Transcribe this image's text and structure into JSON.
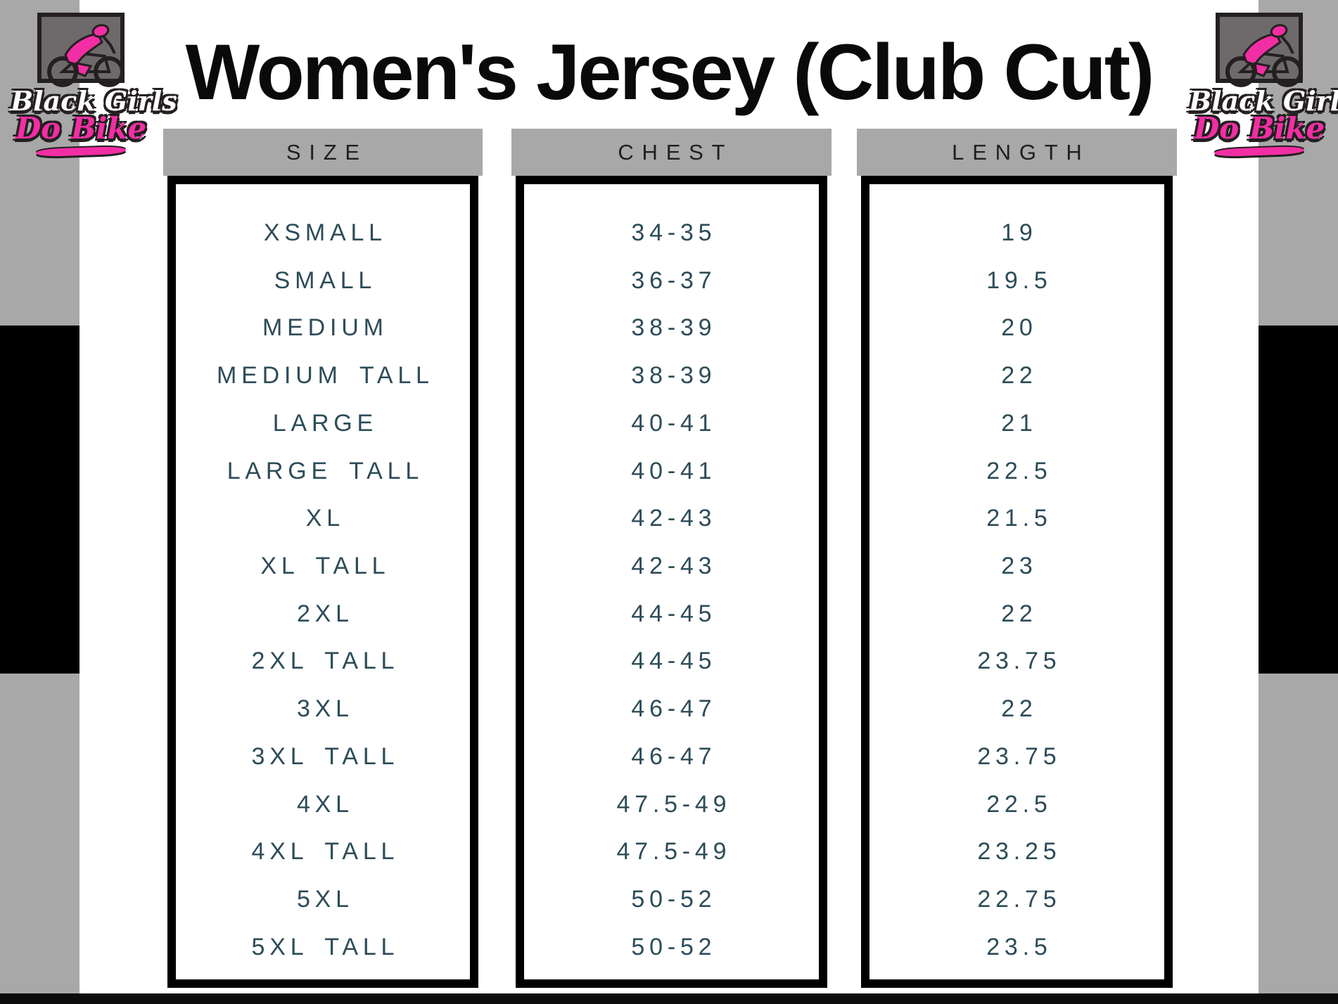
{
  "page": {
    "title": "Women's Jersey (Club Cut)"
  },
  "logo": {
    "line1": "Black Girls",
    "line2": "Do Bike"
  },
  "table": {
    "columns": [
      "SIZE",
      "CHEST",
      "LENGTH"
    ],
    "rows": [
      {
        "size": "XSMALL",
        "chest": "34-35",
        "length": "19"
      },
      {
        "size": "SMALL",
        "chest": "36-37",
        "length": "19.5"
      },
      {
        "size": "MEDIUM",
        "chest": "38-39",
        "length": "20"
      },
      {
        "size": "MEDIUM TALL",
        "chest": "38-39",
        "length": "22"
      },
      {
        "size": "LARGE",
        "chest": "40-41",
        "length": "21"
      },
      {
        "size": "LARGE TALL",
        "chest": "40-41",
        "length": "22.5"
      },
      {
        "size": "XL",
        "chest": "42-43",
        "length": "21.5"
      },
      {
        "size": "XL TALL",
        "chest": "42-43",
        "length": "23"
      },
      {
        "size": "2XL",
        "chest": "44-45",
        "length": "22"
      },
      {
        "size": "2XL TALL",
        "chest": "44-45",
        "length": "23.75"
      },
      {
        "size": "3XL",
        "chest": "46-47",
        "length": "22"
      },
      {
        "size": "3XL TALL",
        "chest": "46-47",
        "length": "23.75"
      },
      {
        "size": "4XL",
        "chest": "47.5-49",
        "length": "22.5"
      },
      {
        "size": "4XL TALL",
        "chest": "47.5-49",
        "length": "23.25"
      },
      {
        "size": "5XL",
        "chest": "50-52",
        "length": "22.75"
      },
      {
        "size": "5XL TALL",
        "chest": "50-52",
        "length": "23.5"
      }
    ]
  },
  "colors": {
    "brand_pink": "#f22ea4",
    "table_text": "#2d4c58",
    "strip_gray": "#a8a8a8",
    "badge_gray": "#6e696b",
    "accent_black": "#000000"
  }
}
